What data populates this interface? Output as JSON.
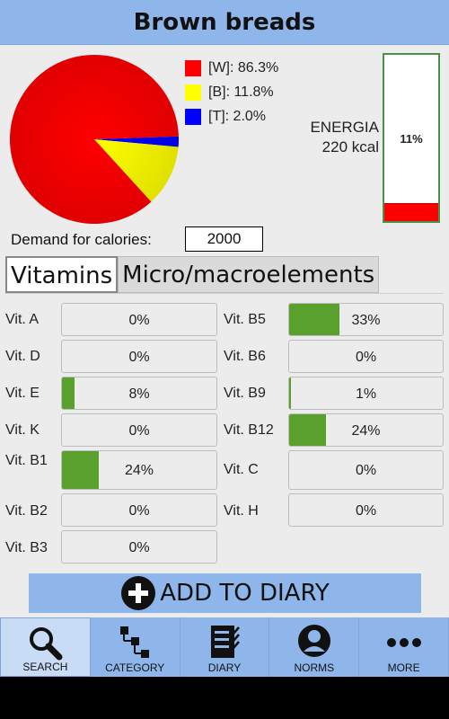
{
  "header": {
    "title": "Brown breads"
  },
  "macros": {
    "chart_data": {
      "type": "pie",
      "labels": [
        "[W]",
        "[B]",
        "[T]"
      ],
      "values": [
        86.3,
        11.8,
        2.0
      ],
      "colors": [
        "#ff0000",
        "#ffff00",
        "#0000ff"
      ]
    },
    "legend": [
      {
        "text": "[W]: 86.3%",
        "color": "#ff0000"
      },
      {
        "text": "[B]: 11.8%",
        "color": "#ffff00"
      },
      {
        "text": "[T]: 2.0%",
        "color": "#0000ff"
      }
    ]
  },
  "energy": {
    "label": "ENERGIA",
    "value": "220 kcal",
    "percent_text": "11%",
    "percent": 11,
    "fill_color": "#ff0000"
  },
  "demand": {
    "label": "Demand for calories:",
    "value": "2000"
  },
  "tabs": [
    {
      "label": "Vitamins",
      "active": true
    },
    {
      "label": "Micro/macroelements",
      "active": false
    }
  ],
  "vitamins": {
    "left": [
      {
        "name": "Vit. A",
        "percent_text": "0%",
        "percent": 0
      },
      {
        "name": "Vit. D",
        "percent_text": "0%",
        "percent": 0
      },
      {
        "name": "Vit. E",
        "percent_text": "8%",
        "percent": 8
      },
      {
        "name": "Vit. K",
        "percent_text": "0%",
        "percent": 0
      },
      {
        "name": "Vit. B1",
        "percent_text": "24%",
        "percent": 24
      },
      {
        "name": "Vit. B2",
        "percent_text": "0%",
        "percent": 0
      },
      {
        "name": "Vit. B3",
        "percent_text": "0%",
        "percent": 0
      }
    ],
    "right": [
      {
        "name": "Vit. B5",
        "percent_text": "33%",
        "percent": 33
      },
      {
        "name": "Vit. B6",
        "percent_text": "0%",
        "percent": 0
      },
      {
        "name": "Vit. B9",
        "percent_text": "1%",
        "percent": 1
      },
      {
        "name": "Vit. B12",
        "percent_text": "24%",
        "percent": 24
      },
      {
        "name": "Vit. C",
        "percent_text": "0%",
        "percent": 0
      },
      {
        "name": "Vit. H",
        "percent_text": "0%",
        "percent": 0
      }
    ]
  },
  "add_button": {
    "label": "ADD TO DIARY",
    "icon": "plus-circle-icon"
  },
  "nav": [
    {
      "label": "SEARCH",
      "icon": "search-icon",
      "active": true
    },
    {
      "label": "CATEGORY",
      "icon": "category-tree-icon",
      "active": false
    },
    {
      "label": "DIARY",
      "icon": "diary-checklist-icon",
      "active": false
    },
    {
      "label": "NORMS",
      "icon": "user-icon",
      "active": false
    },
    {
      "label": "MORE",
      "icon": "more-dots-icon",
      "active": false
    }
  ],
  "colors": {
    "accent": "#8fb6ea",
    "bar_fill": "#5aa02c",
    "background": "#ececec"
  }
}
